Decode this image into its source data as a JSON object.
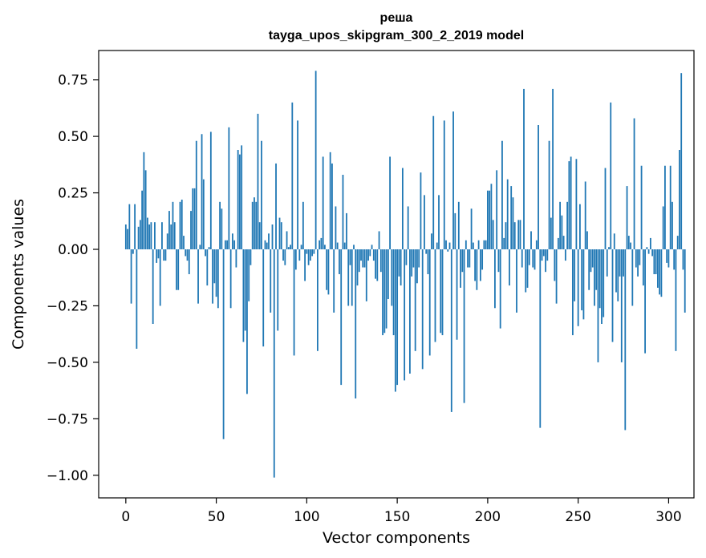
{
  "chart_data": {
    "type": "bar",
    "title": "реша",
    "subtitle": "tayga_upos_skipgram_300_2_2019 model",
    "xlabel": "Vector components",
    "ylabel": "Components values",
    "xlim": [
      -15,
      314
    ],
    "ylim": [
      -1.1,
      0.88
    ],
    "xticks": [
      0,
      50,
      100,
      150,
      200,
      250,
      300
    ],
    "xtick_labels": [
      "0",
      "50",
      "100",
      "150",
      "200",
      "250",
      "300"
    ],
    "yticks": [
      -1.0,
      -0.75,
      -0.5,
      -0.25,
      0.0,
      0.25,
      0.5,
      0.75
    ],
    "ytick_labels": [
      "−1.00",
      "−0.75",
      "−0.50",
      "−0.25",
      "0.00",
      "0.25",
      "0.50",
      "0.75"
    ],
    "grid": false,
    "bar_color": "#1f77b4",
    "series": [
      {
        "x_start": 0,
        "values": [
          0.11,
          0.09,
          0.2,
          -0.24,
          -0.02,
          0.2,
          -0.44,
          0.1,
          0.13,
          0.26,
          0.43,
          0.35,
          0.14,
          0.11,
          0.12,
          -0.33,
          0.12,
          -0.06,
          -0.04,
          -0.25,
          0.12,
          -0.05,
          -0.05,
          0.07,
          0.17,
          0.11,
          0.21,
          0.12,
          -0.18,
          -0.18,
          0.21,
          0.22,
          0.06,
          -0.03,
          -0.05,
          -0.11,
          0.17,
          0.27,
          0.27,
          0.48,
          -0.24,
          0.02,
          0.51,
          0.31,
          -0.03,
          -0.16,
          0.01,
          0.52,
          -0.24,
          -0.15,
          -0.21,
          -0.26,
          0.21,
          0.18,
          -0.84,
          0.04,
          0.04,
          0.54,
          -0.26,
          0.07,
          0.04,
          -0.08,
          0.44,
          0.42,
          0.46,
          -0.41,
          -0.36,
          -0.64,
          -0.23,
          -0.07,
          0.21,
          0.23,
          0.21,
          0.6,
          0.12,
          0.48,
          -0.43,
          0.04,
          0.03,
          0.07,
          -0.28,
          0.11,
          -1.01,
          0.38,
          -0.36,
          0.14,
          0.12,
          -0.05,
          -0.07,
          0.08,
          0.01,
          0.02,
          0.65,
          -0.47,
          -0.09,
          0.57,
          -0.05,
          0.02,
          0.21,
          -0.14,
          -0.02,
          -0.07,
          -0.05,
          -0.03,
          -0.02,
          0.79,
          -0.45,
          0.04,
          0.05,
          0.41,
          0.02,
          -0.18,
          -0.2,
          0.43,
          0.38,
          -0.28,
          0.19,
          0.03,
          -0.11,
          -0.6,
          0.33,
          0.03,
          0.16,
          -0.25,
          -0.07,
          -0.25,
          0.02,
          -0.66,
          -0.16,
          -0.1,
          -0.05,
          -0.08,
          -0.08,
          -0.23,
          -0.05,
          -0.03,
          0.02,
          -0.05,
          -0.13,
          -0.14,
          0.08,
          -0.1,
          -0.38,
          -0.37,
          -0.35,
          -0.22,
          0.41,
          -0.25,
          -0.38,
          -0.63,
          -0.6,
          -0.12,
          -0.16,
          0.36,
          -0.58,
          -0.07,
          0.19,
          -0.55,
          -0.12,
          -0.08,
          -0.45,
          -0.15,
          -0.08,
          0.34,
          -0.53,
          0.24,
          -0.02,
          -0.11,
          -0.47,
          0.07,
          0.59,
          -0.41,
          0.03,
          0.24,
          -0.37,
          -0.38,
          0.57,
          0.04,
          -0.01,
          0.03,
          -0.72,
          0.61,
          0.16,
          -0.4,
          0.21,
          -0.17,
          -0.1,
          -0.68,
          0.04,
          -0.08,
          -0.08,
          0.18,
          0.03,
          -0.14,
          -0.18,
          0.04,
          -0.14,
          -0.09,
          0.04,
          0.04,
          0.26,
          0.26,
          0.29,
          0.13,
          -0.26,
          0.35,
          -0.1,
          -0.35,
          0.48,
          0.05,
          0.12,
          0.31,
          -0.16,
          0.28,
          0.23,
          0.12,
          -0.28,
          0.13,
          0.13,
          -0.08,
          0.71,
          -0.19,
          -0.17,
          -0.07,
          0.08,
          -0.08,
          -0.09,
          0.04,
          0.55,
          -0.79,
          -0.05,
          -0.03,
          -0.1,
          -0.05,
          0.48,
          0.14,
          0.71,
          -0.14,
          -0.24,
          0.05,
          0.21,
          0.15,
          0.06,
          -0.05,
          0.21,
          0.39,
          0.41,
          -0.38,
          -0.23,
          0.4,
          -0.34,
          0.2,
          -0.27,
          -0.31,
          0.3,
          0.08,
          -0.18,
          -0.1,
          -0.08,
          -0.25,
          -0.18,
          -0.5,
          -0.26,
          -0.33,
          -0.3,
          0.36,
          -0.12,
          0.01,
          0.65,
          -0.41,
          0.07,
          -0.19,
          -0.23,
          -0.12,
          -0.5,
          -0.12,
          -0.8,
          0.28,
          0.06,
          0.03,
          -0.25,
          0.58,
          -0.08,
          -0.12,
          -0.07,
          0.37,
          -0.16,
          -0.46,
          0.01,
          -0.02,
          0.05,
          -0.03,
          -0.11,
          -0.11,
          -0.17,
          -0.2,
          -0.21,
          0.19,
          0.37,
          -0.06,
          -0.08,
          0.37,
          0.21,
          -0.09,
          -0.45,
          0.06,
          0.44,
          0.78,
          -0.09,
          -0.28
        ]
      }
    ]
  }
}
